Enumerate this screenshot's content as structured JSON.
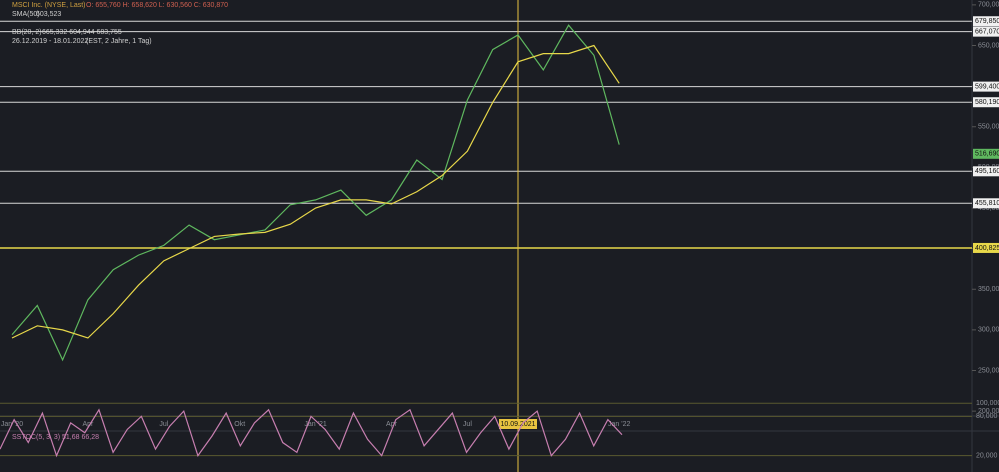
{
  "chart_data": [
    {
      "type": "line",
      "title": "MSCI Inc. (NYSE, Last)",
      "ohlc_text": "O: 655,760  H: 658,620  L: 630,560  C: 630,870",
      "range_text": "26.12.2019 - 18.01.2022",
      "range_note": "(EST, 2 Jahre, 1 Tag)",
      "indicator_text": "BB(20, 2)",
      "indicator_values": "665,332  604,944  683,755",
      "categories": [
        "Jan '20",
        null,
        null,
        "Apr",
        null,
        null,
        "Jul",
        null,
        null,
        "Okt",
        null,
        null,
        "Jan '21",
        null,
        null,
        "Apr",
        null,
        null,
        "Jul",
        null,
        null,
        null,
        null,
        null,
        "Jan '22"
      ],
      "series": [
        {
          "name": "MSCI Inc. (NYSE, Last)",
          "color": "#5fb85f",
          "values": [
            294,
            330,
            263,
            337,
            374,
            392,
            404,
            429,
            411,
            417,
            423,
            454,
            460,
            472,
            441,
            460,
            509,
            485,
            583,
            645,
            663,
            620,
            675,
            638,
            528
          ]
        },
        {
          "name": "SMA(50)",
          "legend_value": "603,523",
          "color": "#e8d84a",
          "values": [
            290,
            305,
            300,
            290,
            320,
            355,
            385,
            400,
            415,
            418,
            420,
            430,
            450,
            460,
            460,
            455,
            470,
            490,
            520,
            580,
            630,
            640,
            640,
            650,
            603.5
          ]
        }
      ],
      "ylim": [
        194,
        706
      ],
      "yticks": [
        {
          "value": 200,
          "label": "200,000"
        },
        {
          "value": 250,
          "label": "250,000"
        },
        {
          "value": 300,
          "label": "300,000"
        },
        {
          "value": 350,
          "label": "350,000"
        },
        {
          "value": 400,
          "label": "400,000"
        },
        {
          "value": 450,
          "label": "450,000"
        },
        {
          "value": 500,
          "label": "500,000"
        },
        {
          "value": 550,
          "label": "550,000"
        },
        {
          "value": 600,
          "label": "600,000"
        },
        {
          "value": 650,
          "label": "650,000"
        },
        {
          "value": 700,
          "label": "700,000"
        }
      ],
      "levels": [
        {
          "value": 679.85,
          "label": "679,850"
        },
        {
          "value": 667.07,
          "label": "667,070"
        },
        {
          "value": 599.4,
          "label": "599,400"
        },
        {
          "value": 580.19,
          "label": "580,190"
        },
        {
          "value": 495.16,
          "label": "495,160"
        },
        {
          "value": 455.81,
          "label": "455,810"
        },
        {
          "value": 400.825,
          "label": "400,825"
        }
      ],
      "last_price": {
        "value": 516.69,
        "label": "516,690"
      },
      "crosshair": {
        "index": 20,
        "label": "10.09.2021"
      }
    },
    {
      "type": "line",
      "title": "SSTOC(5, 3, 3)",
      "readout": "51,68  66,28",
      "color": "#c77fb0",
      "values": [
        30,
        75,
        40,
        85,
        20,
        70,
        55,
        90,
        25,
        60,
        80,
        30,
        65,
        88,
        20,
        50,
        85,
        35,
        70,
        90,
        40,
        25,
        80,
        60,
        30,
        85,
        45,
        20,
        75,
        90,
        35,
        60,
        85,
        25,
        55,
        80,
        30,
        70,
        88,
        20,
        45,
        85,
        35,
        75,
        52
      ],
      "ylim": [
        -5,
        105
      ],
      "yticks": [
        {
          "value": 20,
          "label": "20,000"
        },
        {
          "value": 80,
          "label": "80,000"
        },
        {
          "value": 100,
          "label": "100,000"
        }
      ]
    }
  ]
}
